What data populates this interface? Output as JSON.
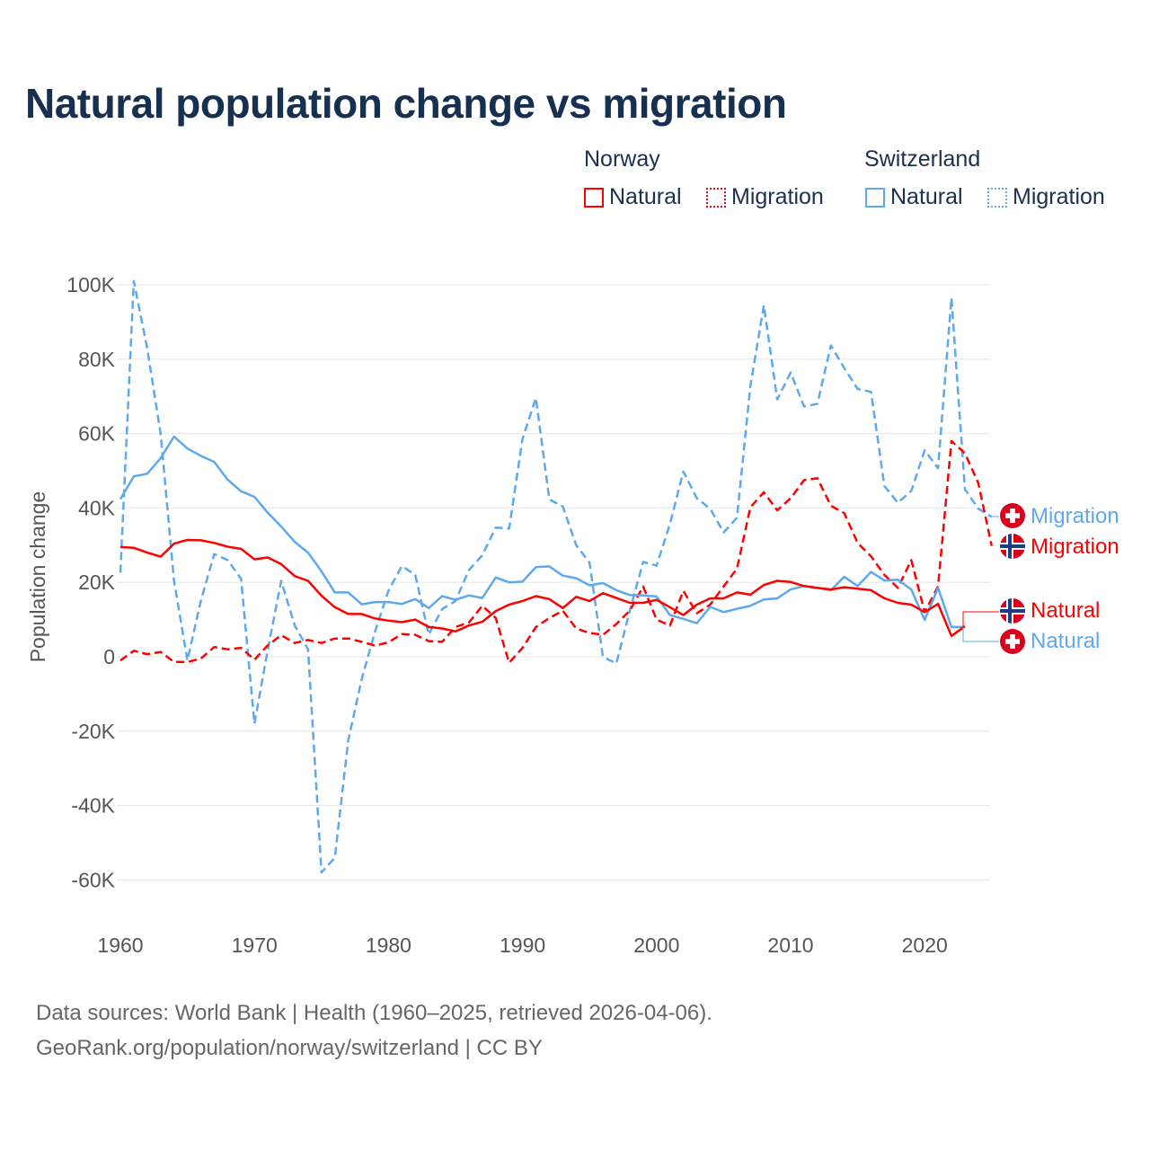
{
  "title": "Natural population change vs migration",
  "legend": {
    "groups": [
      {
        "country": "Norway",
        "items": [
          {
            "label": "Natural",
            "style": "solid",
            "color": "#ff0000"
          },
          {
            "label": "Migration",
            "style": "dotted",
            "color": "#ff0000"
          }
        ]
      },
      {
        "country": "Switzerland",
        "items": [
          {
            "label": "Natural",
            "style": "solid",
            "color": "#5ea8ee"
          },
          {
            "label": "Migration",
            "style": "dotted",
            "color": "#5ea8ee"
          }
        ]
      }
    ]
  },
  "source": {
    "line1": "Data sources: World Bank | Health (1960–2025, retrieved 2026-04-06).",
    "line2": "GeoRank.org/population/norway/switzerland | CC BY"
  },
  "end_labels": {
    "ch_migration": "Migration",
    "no_migration": "Migration",
    "no_natural": "Natural",
    "ch_natural": "Natural"
  },
  "chart_data": {
    "type": "line",
    "title": "Natural population change vs migration",
    "xlabel": "",
    "ylabel": "Population change",
    "xlim": [
      1960,
      2025
    ],
    "ylim": [
      -70000,
      100000
    ],
    "x_ticks": [
      1960,
      1970,
      1980,
      1990,
      2000,
      2010,
      2020
    ],
    "x_tick_labels": [
      "1960",
      "1970",
      "1980",
      "1990",
      "2000",
      "2010",
      "2020"
    ],
    "y_ticks": [
      100000,
      80000,
      60000,
      40000,
      20000,
      0,
      -20000,
      -40000,
      -60000
    ],
    "y_tick_labels": [
      "100K",
      "80K",
      "60K",
      "40K",
      "20K",
      "0",
      "-20K",
      "-40K",
      "-60K"
    ],
    "grid": true,
    "legend_position": "top-right",
    "series": [
      {
        "name": "Switzerland Migration",
        "color": "#5ea8ee",
        "dash": true,
        "start": 1960,
        "values": [
          22.6,
          101,
          83,
          60,
          20.4,
          -1,
          15,
          27.6,
          26,
          21,
          -18,
          2,
          20.4,
          8.4,
          2,
          -58,
          -54,
          -22.5,
          -6,
          6.8,
          17.8,
          24.4,
          22,
          6,
          12.8,
          15,
          23.3,
          27.3,
          34.7,
          34.5,
          58.6,
          69.6,
          42.3,
          40.4,
          30,
          25.3,
          0,
          -1.8,
          12.4,
          25.5,
          24.5,
          35.7,
          49.8,
          42.6,
          39.8,
          33.4,
          37.4,
          72.8,
          94.5,
          69.2,
          76.4,
          67.3,
          68,
          83.7,
          77.6,
          72,
          71.2,
          45.9,
          41.4,
          44.6,
          55.5,
          50.7,
          96.5,
          45,
          39.8,
          37.6
        ]
      },
      {
        "name": "Norway Migration",
        "color": "#ff0000",
        "dash": true,
        "start": 1960,
        "values": [
          -1,
          1.6,
          0.7,
          1.3,
          -1.4,
          -1.4,
          -0.5,
          2.6,
          2,
          2.4,
          -0.8,
          3.1,
          5.8,
          3.7,
          4.5,
          3.7,
          4.9,
          4.9,
          4,
          3,
          3.9,
          6.1,
          5.9,
          4.2,
          4,
          8,
          9.2,
          13.7,
          10.4,
          -1.6,
          2.4,
          8,
          10.4,
          12.4,
          7.6,
          6.4,
          5.9,
          8.8,
          12.4,
          18.9,
          10,
          8.4,
          17.7,
          11.7,
          14,
          18.9,
          23.7,
          40.2,
          44.2,
          39.4,
          42.6,
          47.5,
          48,
          40.6,
          38.6,
          30.6,
          27,
          22,
          18.5,
          26,
          12,
          18.9,
          58,
          54.7,
          46.7,
          29.8
        ]
      },
      {
        "name": "Switzerland Natural",
        "color": "#5ea8ee",
        "dash": false,
        "start": 1960,
        "values": [
          42.4,
          48.5,
          49.2,
          53.4,
          59.2,
          56,
          54,
          52.4,
          47.6,
          44.5,
          43,
          38.7,
          35,
          30.9,
          28,
          23,
          17.3,
          17.3,
          14.1,
          14.7,
          14.7,
          14.2,
          15.5,
          13.1,
          16.3,
          15.3,
          16.5,
          15.8,
          21.3,
          20,
          20.2,
          24.1,
          24.3,
          21.8,
          21.1,
          19.2,
          19.8,
          17.9,
          16.6,
          16.5,
          16.2,
          11.2,
          10.2,
          9,
          13.4,
          12,
          12.9,
          13.7,
          15.4,
          15.7,
          18.1,
          19,
          18.5,
          17.9,
          21.5,
          19,
          22.8,
          20.5,
          20.7,
          18.1,
          9.9,
          18.5,
          8,
          8
        ]
      },
      {
        "name": "Norway Natural",
        "color": "#ff0000",
        "dash": false,
        "start": 1960,
        "values": [
          29.5,
          29.3,
          28,
          26.9,
          30.4,
          31.4,
          31.3,
          30.6,
          29.6,
          29,
          26.2,
          26.7,
          24.9,
          21.7,
          20.4,
          16.4,
          13.3,
          11.5,
          11.5,
          10.3,
          9.7,
          9.3,
          10,
          8,
          7.6,
          6.8,
          8.4,
          9.4,
          12.3,
          14,
          15,
          16.3,
          15.5,
          13.1,
          16.1,
          15,
          17.1,
          15.8,
          14.5,
          14.5,
          15.3,
          13.3,
          11.2,
          14,
          15.7,
          15.7,
          17.3,
          16.7,
          19.3,
          20.4,
          20.1,
          19,
          18.5,
          18.1,
          18.7,
          18.3,
          17.9,
          15.7,
          14.5,
          14,
          12,
          14.2,
          5.6,
          8.2
        ]
      }
    ],
    "value_unit": "thousands"
  }
}
